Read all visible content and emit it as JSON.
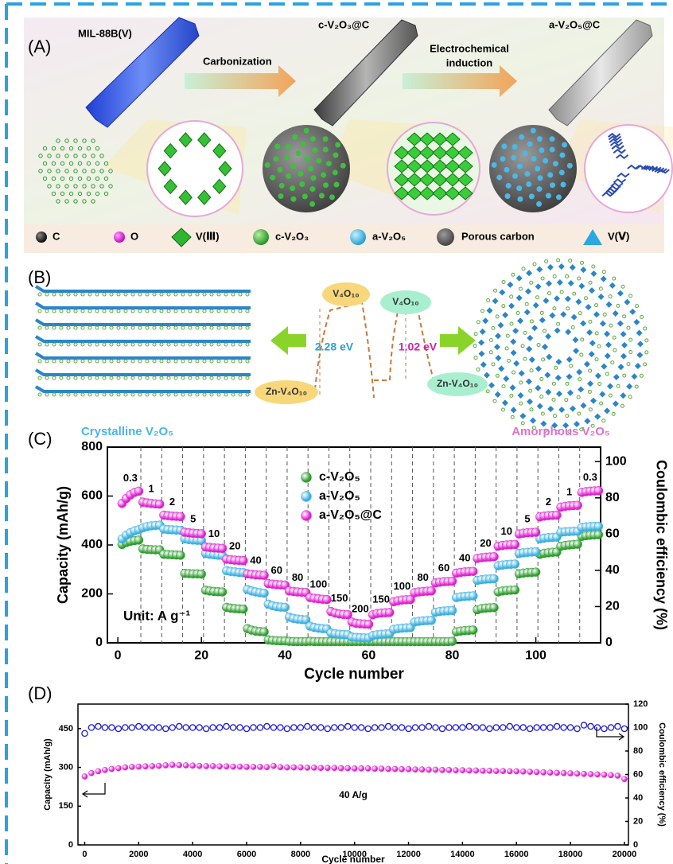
{
  "panel_labels": [
    "(A)",
    "(B)",
    "(C)",
    "(D)"
  ],
  "panel_a": {
    "mof": "MIL-88B(V)",
    "step1": "Carbonization",
    "product1": "c-V₂O₃@C",
    "step2": [
      "Electrochemical",
      "induction"
    ],
    "product2": "a-V₂O₅@C",
    "legend": [
      "C",
      "O",
      "V(Ⅲ)",
      "c-V₂O₃",
      "a-V₂O₅",
      "Porous carbon",
      "V(Ⅴ)"
    ]
  },
  "panel_b": {
    "state_left": "V₄O₁₀",
    "state_right": "V₄O₁₀",
    "barrier_left": "2.28 eV",
    "barrier_right": "1.02 eV",
    "zn_left": "Zn-V₄O₁₀",
    "zn_right": "Zn-V₄O₁₀",
    "crystalline": "Crystalline V₂O₅",
    "amorphous": "Amorphous V₂O₅"
  },
  "chart_data": [
    {
      "type": "scatter",
      "x_label": "Cycle number",
      "y_label": "Capacity (mAh/g)",
      "y2_label": "Coulombic efficiency (%)",
      "annotation": "Unit: A g⁻¹",
      "legend": "upper center",
      "rate_labels": [
        "0.3",
        "1",
        "2",
        "5",
        "10",
        "20",
        "40",
        "60",
        "80",
        "100",
        "150",
        "200",
        "150",
        "100",
        "80",
        "60",
        "40",
        "20",
        "10",
        "5",
        "2",
        "1",
        "0.3"
      ],
      "xlim": [
        -2.5,
        115.5
      ],
      "xticks": [
        0,
        20,
        40,
        60,
        80,
        100
      ],
      "ylim": [
        0,
        800
      ],
      "yticks": [
        0,
        200,
        400,
        600,
        800
      ],
      "y2lim": [
        0,
        108
      ],
      "y2ticks": [
        0,
        20,
        40,
        60,
        80,
        100
      ],
      "x": [
        1,
        2,
        3,
        4,
        5,
        6,
        7,
        8,
        9,
        10,
        11,
        12,
        13,
        14,
        15,
        16,
        17,
        18,
        19,
        20,
        21,
        22,
        23,
        24,
        25,
        26,
        27,
        28,
        29,
        30,
        31,
        32,
        33,
        34,
        35,
        36,
        37,
        38,
        39,
        40,
        41,
        42,
        43,
        44,
        45,
        46,
        47,
        48,
        49,
        50,
        51,
        52,
        53,
        54,
        55,
        56,
        57,
        58,
        59,
        60,
        61,
        62,
        63,
        64,
        65,
        66,
        67,
        68,
        69,
        70,
        71,
        72,
        73,
        74,
        75,
        76,
        77,
        78,
        79,
        80,
        81,
        82,
        83,
        84,
        85,
        86,
        87,
        88,
        89,
        90,
        91,
        92,
        93,
        94,
        95,
        96,
        97,
        98,
        99,
        100,
        101,
        102,
        103,
        104,
        105,
        106,
        107,
        108,
        109,
        110,
        111,
        112,
        113,
        114,
        115
      ],
      "series": [
        {
          "name": "c-V₂O₅",
          "color": "#2e9e2e",
          "values": [
            402,
            410,
            415,
            418,
            420,
            384,
            382,
            381,
            380,
            380,
            362,
            361,
            360,
            359,
            358,
            284,
            283,
            282,
            282,
            281,
            215,
            212,
            210,
            209,
            208,
            145,
            142,
            140,
            139,
            138,
            58,
            52,
            48,
            46,
            45,
            12,
            10,
            9,
            8,
            8,
            6,
            5,
            5,
            5,
            5,
            6,
            5,
            5,
            5,
            5,
            5,
            5,
            5,
            5,
            5,
            5,
            5,
            5,
            5,
            5,
            5,
            5,
            5,
            5,
            5,
            5,
            5,
            5,
            5,
            5,
            5,
            5,
            5,
            5,
            5,
            5,
            5,
            5,
            5,
            6,
            45,
            48,
            50,
            51,
            52,
            135,
            140,
            142,
            143,
            144,
            208,
            212,
            214,
            215,
            216,
            282,
            285,
            287,
            288,
            289,
            362,
            366,
            368,
            370,
            371,
            395,
            398,
            400,
            402,
            403,
            435,
            438,
            440,
            441,
            442
          ]
        },
        {
          "name": "a-V₂O₅",
          "color": "#3bb0e0",
          "values": [
            425,
            440,
            450,
            458,
            462,
            470,
            475,
            478,
            480,
            481,
            465,
            463,
            462,
            461,
            460,
            425,
            422,
            420,
            419,
            418,
            365,
            362,
            360,
            358,
            357,
            295,
            292,
            290,
            288,
            287,
            218,
            212,
            208,
            205,
            203,
            158,
            152,
            148,
            146,
            145,
            105,
            100,
            97,
            95,
            94,
            68,
            63,
            60,
            58,
            57,
            40,
            37,
            35,
            34,
            33,
            24,
            22,
            21,
            20,
            20,
            30,
            33,
            35,
            36,
            37,
            55,
            58,
            60,
            61,
            62,
            85,
            88,
            90,
            91,
            92,
            125,
            128,
            130,
            131,
            132,
            185,
            188,
            190,
            191,
            192,
            255,
            258,
            260,
            261,
            262,
            315,
            318,
            320,
            321,
            322,
            365,
            368,
            370,
            371,
            372,
            425,
            428,
            430,
            431,
            432,
            452,
            454,
            455,
            456,
            456,
            472,
            474,
            475,
            476,
            476
          ]
        },
        {
          "name": "a-V₂O₅@C",
          "color": "#e020d0",
          "values": [
            570,
            590,
            605,
            615,
            620,
            575,
            572,
            570,
            568,
            567,
            522,
            520,
            518,
            517,
            516,
            452,
            450,
            448,
            447,
            446,
            392,
            390,
            388,
            387,
            386,
            342,
            340,
            338,
            337,
            336,
            282,
            280,
            278,
            277,
            276,
            242,
            240,
            238,
            237,
            236,
            212,
            210,
            208,
            207,
            206,
            185,
            182,
            180,
            178,
            177,
            128,
            122,
            118,
            116,
            115,
            85,
            80,
            78,
            77,
            76,
            115,
            120,
            122,
            123,
            124,
            168,
            172,
            175,
            176,
            177,
            205,
            208,
            210,
            211,
            212,
            245,
            248,
            250,
            251,
            252,
            285,
            288,
            290,
            291,
            292,
            345,
            348,
            350,
            351,
            352,
            395,
            398,
            400,
            401,
            402,
            445,
            448,
            450,
            451,
            452,
            515,
            518,
            520,
            521,
            522,
            555,
            558,
            560,
            561,
            562,
            615,
            618,
            620,
            621,
            622
          ]
        }
      ]
    },
    {
      "type": "scatter",
      "x_label": "Cycle number",
      "y_label": "Capacity (mAh/g)",
      "y2_label": "Coulombic efficiency (%)",
      "annotation": "40 A/g",
      "xlim": [
        -250,
        20150
      ],
      "xticks": [
        0,
        2000,
        4000,
        6000,
        8000,
        10000,
        12000,
        14000,
        16000,
        18000,
        20000
      ],
      "ylim": [
        0,
        545
      ],
      "yticks": [
        0,
        150,
        300,
        450
      ],
      "y2lim": [
        0,
        120
      ],
      "y2ticks": [
        0,
        20,
        40,
        60,
        80,
        100,
        120
      ],
      "x": [
        0,
        250,
        500,
        750,
        1000,
        1250,
        1500,
        1750,
        2000,
        2250,
        2500,
        2750,
        3000,
        3250,
        3500,
        3750,
        4000,
        4250,
        4500,
        4750,
        5000,
        5250,
        5500,
        5750,
        6000,
        6250,
        6500,
        6750,
        7000,
        7250,
        7500,
        7750,
        8000,
        8250,
        8500,
        8750,
        9000,
        9250,
        9500,
        9750,
        10000,
        10250,
        10500,
        10750,
        11000,
        11250,
        11500,
        11750,
        12000,
        12250,
        12500,
        12750,
        13000,
        13250,
        13500,
        13750,
        14000,
        14250,
        14500,
        14750,
        15000,
        15250,
        15500,
        15750,
        16000,
        16250,
        16500,
        16750,
        17000,
        17250,
        17500,
        17750,
        18000,
        18250,
        18500,
        18750,
        19000,
        19250,
        19500,
        19750,
        20000
      ],
      "series": [
        {
          "color": "#e020d0",
          "marker": "filled",
          "values": [
            265,
            278,
            285,
            290,
            294,
            297,
            300,
            302,
            303,
            304,
            305,
            306,
            308,
            310,
            309,
            308,
            307,
            306,
            305,
            305,
            304,
            304,
            303,
            303,
            302,
            302,
            302,
            301,
            306,
            301,
            300,
            300,
            300,
            299,
            299,
            298,
            298,
            298,
            297,
            297,
            296,
            296,
            296,
            295,
            295,
            294,
            294,
            293,
            293,
            292,
            292,
            291,
            291,
            290,
            290,
            289,
            289,
            288,
            288,
            287,
            287,
            286,
            286,
            285,
            285,
            284,
            283,
            282,
            281,
            280,
            279,
            278,
            277,
            276,
            275,
            274,
            273,
            272,
            270,
            268,
            255
          ]
        },
        {
          "color": "#1a1ad0",
          "marker": "open",
          "axis": "y2",
          "values": [
            95,
            100,
            101,
            100,
            100,
            99,
            100,
            100,
            101,
            100,
            100,
            100,
            99,
            100,
            101,
            100,
            100,
            100,
            99,
            100,
            100,
            101,
            100,
            100,
            99,
            100,
            100,
            101,
            100,
            100,
            99,
            100,
            100,
            101,
            100,
            100,
            99,
            100,
            100,
            101,
            100,
            100,
            99,
            100,
            100,
            101,
            100,
            100,
            99,
            100,
            100,
            101,
            100,
            99,
            100,
            100,
            100,
            101,
            100,
            100,
            99,
            100,
            100,
            101,
            100,
            100,
            99,
            100,
            100,
            100,
            101,
            100,
            100,
            99,
            102,
            101,
            100,
            99,
            100,
            101,
            99
          ]
        }
      ]
    }
  ]
}
